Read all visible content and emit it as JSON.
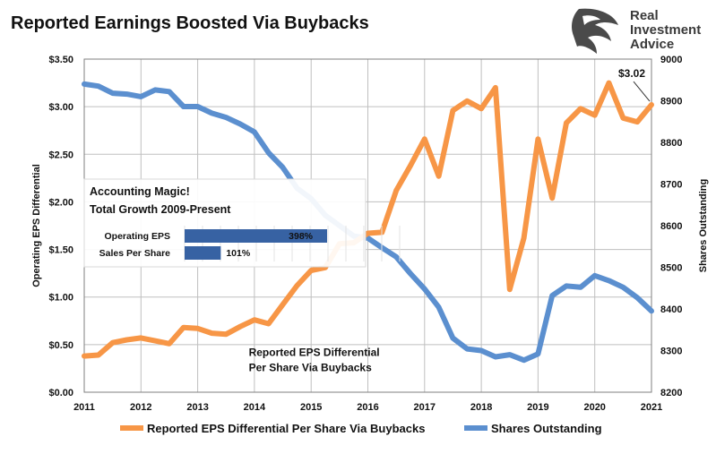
{
  "chart_data": {
    "type": "line",
    "title": "Reported Earnings Boosted Via Buybacks",
    "ylabel_left": "Operating EPS Differential",
    "ylabel_right": "Shares Outstanding",
    "xlim": [
      2011,
      2021
    ],
    "ylim_left": [
      0,
      3.5
    ],
    "ylim_right": [
      8200,
      9000
    ],
    "x_ticks": [
      "2011",
      "2012",
      "2013",
      "2014",
      "2015",
      "2016",
      "2017",
      "2018",
      "2019",
      "2020",
      "2021"
    ],
    "y_left_ticks": [
      "$0.00",
      "$0.50",
      "$1.00",
      "$1.50",
      "$2.00",
      "$2.50",
      "$3.00",
      "$3.50"
    ],
    "y_right_ticks": [
      "8200",
      "8300",
      "8400",
      "8500",
      "8600",
      "8700",
      "8800",
      "8900",
      "9000"
    ],
    "grid": true,
    "legend_position": "bottom",
    "series": [
      {
        "name": "Reported EPS Differential Per Share Via Buybacks",
        "axis": "left",
        "color": "#f79646",
        "x": [
          2011.0,
          2011.25,
          2011.5,
          2011.75,
          2012.0,
          2012.25,
          2012.5,
          2012.75,
          2013.0,
          2013.25,
          2013.5,
          2013.75,
          2014.0,
          2014.25,
          2014.5,
          2014.75,
          2015.0,
          2015.25,
          2015.5,
          2015.75,
          2016.0,
          2016.25,
          2016.5,
          2016.75,
          2017.0,
          2017.25,
          2017.5,
          2017.75,
          2018.0,
          2018.25,
          2018.5,
          2018.75,
          2019.0,
          2019.25,
          2019.5,
          2019.75,
          2020.0,
          2020.25,
          2020.5,
          2020.75,
          2021.0
        ],
        "values": [
          0.38,
          0.39,
          0.52,
          0.55,
          0.57,
          0.54,
          0.51,
          0.68,
          0.67,
          0.62,
          0.61,
          0.69,
          0.76,
          0.72,
          0.92,
          1.12,
          1.28,
          1.31,
          1.56,
          1.57,
          1.67,
          1.68,
          2.12,
          2.38,
          2.66,
          2.27,
          2.96,
          3.06,
          2.98,
          3.2,
          1.08,
          1.62,
          2.66,
          2.04,
          2.83,
          2.98,
          2.91,
          3.25,
          2.88,
          2.84,
          3.02
        ]
      },
      {
        "name": "Shares Outstanding",
        "axis": "right",
        "color": "#5b8fcf",
        "x": [
          2011.0,
          2011.25,
          2011.5,
          2011.75,
          2012.0,
          2012.25,
          2012.5,
          2012.75,
          2013.0,
          2013.25,
          2013.5,
          2013.75,
          2014.0,
          2014.25,
          2014.5,
          2014.75,
          2015.0,
          2015.25,
          2015.5,
          2015.75,
          2016.0,
          2016.25,
          2016.5,
          2016.75,
          2017.0,
          2017.25,
          2017.5,
          2017.75,
          2018.0,
          2018.25,
          2018.5,
          2018.75,
          2019.0,
          2019.25,
          2019.5,
          2019.75,
          2020.0,
          2020.25,
          2020.5,
          2020.75,
          2021.0
        ],
        "values": [
          8940,
          8935,
          8918,
          8916,
          8910,
          8926,
          8922,
          8886,
          8886,
          8870,
          8860,
          8844,
          8825,
          8775,
          8740,
          8690,
          8665,
          8625,
          8600,
          8575,
          8570,
          8547,
          8525,
          8485,
          8448,
          8404,
          8330,
          8304,
          8300,
          8285,
          8290,
          8277,
          8292,
          8432,
          8455,
          8452,
          8480,
          8468,
          8452,
          8427,
          8395
        ]
      }
    ],
    "annotations": [
      {
        "text": "$3.02",
        "x": 2021.0,
        "y": 3.02,
        "axis": "left"
      },
      {
        "text": "Reported EPS Differential",
        "x": 2013.9,
        "y": 0.42,
        "axis": "left"
      },
      {
        "text": "Per Share Via Buybacks",
        "x": 2013.9,
        "y": 0.26,
        "axis": "left"
      }
    ],
    "inset": {
      "title_lines": [
        "Accounting Magic!",
        "Total Growth 2009-Present"
      ],
      "bars": [
        {
          "label": "Operating EPS",
          "value": 398,
          "display": "398%"
        },
        {
          "label": "Sales Per Share",
          "value": 101,
          "display": "101%"
        }
      ],
      "bar_color": "#3762a3",
      "scale_max": 398
    }
  },
  "logo": {
    "line1": "Real",
    "line2": "Investment",
    "line3": "Advice"
  },
  "colors": {
    "eps_line": "#f79646",
    "shares_line": "#5b8fcf",
    "grid": "#bfbfbf",
    "plot_border": "#7f7f7f",
    "inset_bar": "#3762a3"
  }
}
